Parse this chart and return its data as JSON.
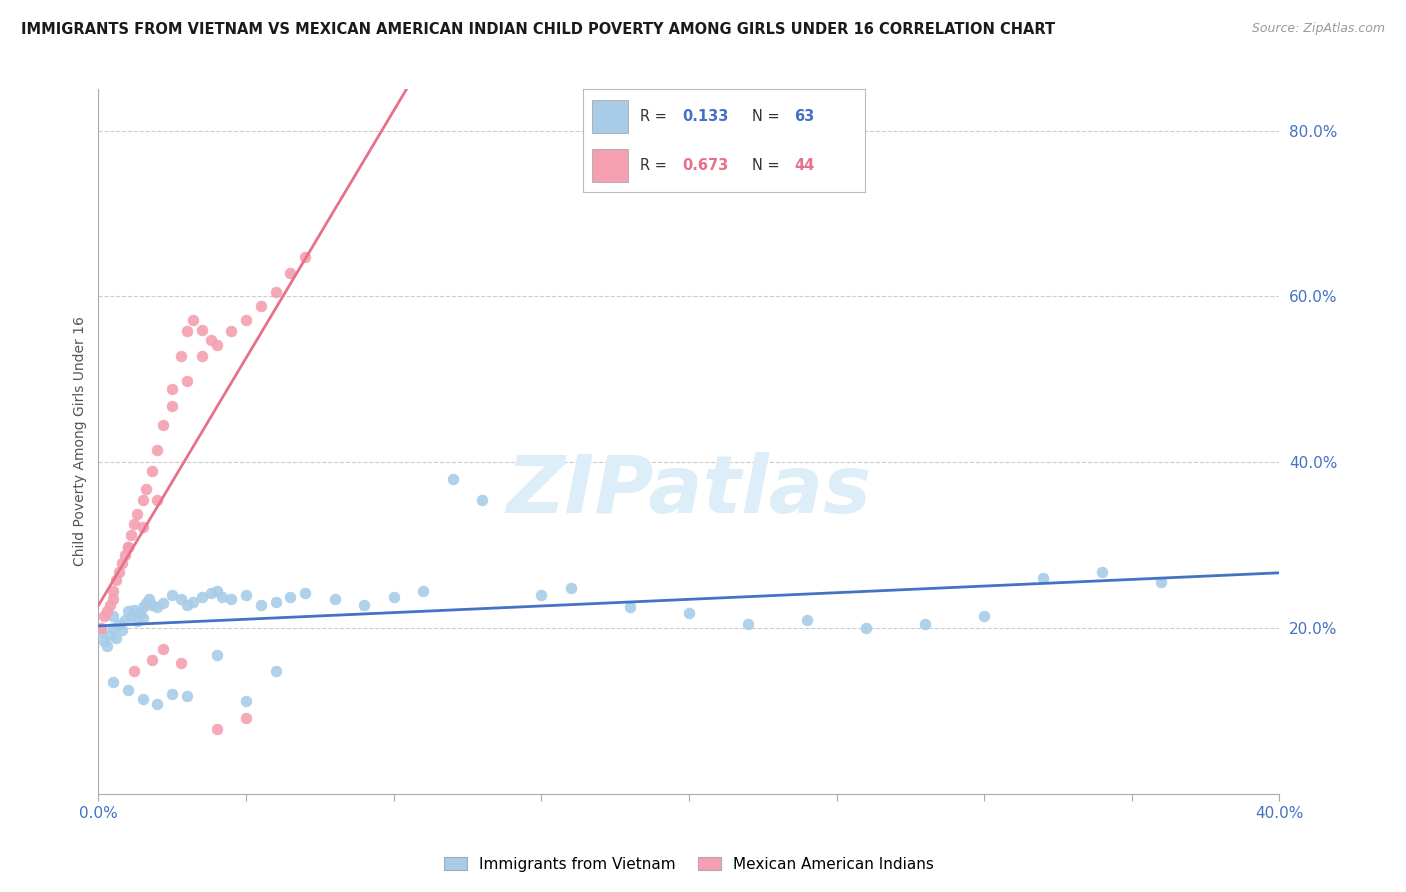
{
  "title": "IMMIGRANTS FROM VIETNAM VS MEXICAN AMERICAN INDIAN CHILD POVERTY AMONG GIRLS UNDER 16 CORRELATION CHART",
  "source": "Source: ZipAtlas.com",
  "ylabel": "Child Poverty Among Girls Under 16",
  "xlim": [
    0.0,
    0.4
  ],
  "ylim": [
    0.0,
    0.85
  ],
  "blue_R": 0.133,
  "blue_N": 63,
  "pink_R": 0.673,
  "pink_N": 44,
  "blue_color": "#a8cce8",
  "pink_color": "#f4a0b0",
  "blue_line_color": "#4472c4",
  "pink_line_color": "#e8708a",
  "grid_color": "#cccccc",
  "watermark_color": "#ddeef8",
  "legend_label_blue": "Immigrants from Vietnam",
  "legend_label_pink": "Mexican American Indians",
  "blue_R_color": "#4472c4",
  "pink_R_color": "#e8708a",
  "blue_scatter_x": [
    0.001,
    0.002,
    0.003,
    0.004,
    0.005,
    0.005,
    0.006,
    0.007,
    0.008,
    0.009,
    0.01,
    0.011,
    0.012,
    0.013,
    0.014,
    0.015,
    0.015,
    0.016,
    0.017,
    0.018,
    0.02,
    0.022,
    0.025,
    0.028,
    0.03,
    0.032,
    0.035,
    0.038,
    0.04,
    0.042,
    0.045,
    0.05,
    0.055,
    0.06,
    0.065,
    0.07,
    0.08,
    0.09,
    0.1,
    0.11,
    0.12,
    0.13,
    0.15,
    0.16,
    0.18,
    0.2,
    0.22,
    0.24,
    0.26,
    0.28,
    0.3,
    0.32,
    0.34,
    0.36,
    0.005,
    0.01,
    0.015,
    0.02,
    0.025,
    0.03,
    0.04,
    0.05,
    0.06
  ],
  "blue_scatter_y": [
    0.195,
    0.185,
    0.178,
    0.192,
    0.2,
    0.215,
    0.188,
    0.205,
    0.198,
    0.21,
    0.22,
    0.215,
    0.222,
    0.208,
    0.218,
    0.225,
    0.212,
    0.23,
    0.235,
    0.228,
    0.225,
    0.23,
    0.24,
    0.235,
    0.228,
    0.232,
    0.238,
    0.242,
    0.245,
    0.238,
    0.235,
    0.24,
    0.228,
    0.232,
    0.238,
    0.242,
    0.235,
    0.228,
    0.238,
    0.245,
    0.38,
    0.355,
    0.24,
    0.248,
    0.225,
    0.218,
    0.205,
    0.21,
    0.2,
    0.205,
    0.215,
    0.26,
    0.268,
    0.255,
    0.135,
    0.125,
    0.115,
    0.108,
    0.12,
    0.118,
    0.168,
    0.112,
    0.148
  ],
  "pink_scatter_x": [
    0.001,
    0.002,
    0.003,
    0.004,
    0.005,
    0.005,
    0.006,
    0.007,
    0.008,
    0.009,
    0.01,
    0.011,
    0.012,
    0.013,
    0.015,
    0.016,
    0.018,
    0.02,
    0.022,
    0.025,
    0.028,
    0.03,
    0.032,
    0.035,
    0.038,
    0.04,
    0.045,
    0.05,
    0.055,
    0.06,
    0.065,
    0.07,
    0.025,
    0.03,
    0.035,
    0.01,
    0.015,
    0.02,
    0.04,
    0.05,
    0.012,
    0.018,
    0.022,
    0.028
  ],
  "pink_scatter_y": [
    0.2,
    0.215,
    0.22,
    0.228,
    0.235,
    0.245,
    0.258,
    0.268,
    0.278,
    0.288,
    0.298,
    0.312,
    0.325,
    0.338,
    0.355,
    0.368,
    0.39,
    0.415,
    0.445,
    0.488,
    0.528,
    0.558,
    0.572,
    0.56,
    0.548,
    0.542,
    0.558,
    0.572,
    0.588,
    0.605,
    0.628,
    0.648,
    0.468,
    0.498,
    0.528,
    0.298,
    0.322,
    0.355,
    0.078,
    0.092,
    0.148,
    0.162,
    0.175,
    0.158
  ]
}
